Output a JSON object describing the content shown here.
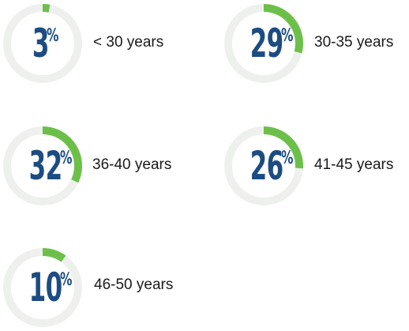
{
  "chart_data": {
    "type": "donut",
    "items": [
      {
        "value": 3,
        "label_num": "3",
        "sign": "%",
        "category": "< 30 years"
      },
      {
        "value": 29,
        "label_num": "29",
        "sign": "%",
        "category": "30-35 years"
      },
      {
        "value": 32,
        "label_num": "32",
        "sign": "%",
        "category": "36-40 years"
      },
      {
        "value": 26,
        "label_num": "26",
        "sign": "%",
        "category": "41-45 years"
      },
      {
        "value": 10,
        "label_num": "10",
        "sign": "%",
        "category": "46-50 years"
      }
    ]
  },
  "colors": {
    "track": "#eef0ee",
    "arc": "#6cc04a",
    "value_text": "#1c4c82",
    "label_text": "#1a1a1a"
  }
}
